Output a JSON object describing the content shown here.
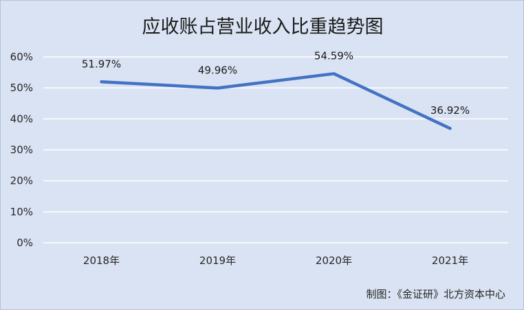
{
  "chart_data": {
    "type": "line",
    "title": "应收账占营业收入比重趋势图",
    "categories": [
      "2018年",
      "2019年",
      "2020年",
      "2021年"
    ],
    "series": [
      {
        "values": [
          51.97,
          49.96,
          54.59,
          36.92
        ]
      }
    ],
    "data_labels": [
      "51.97%",
      "49.96%",
      "54.59%",
      "36.92%"
    ],
    "y_ticks": [
      "0%",
      "10%",
      "20%",
      "30%",
      "40%",
      "50%",
      "60%"
    ],
    "y_tick_values": [
      0,
      10,
      20,
      30,
      40,
      50,
      60
    ],
    "ylim": [
      0,
      60
    ],
    "grid": true,
    "legend": "none",
    "colors": {
      "line": "#4472c4",
      "grid": "#ffffff",
      "background": "#dae3f3"
    }
  },
  "source_note": "制图：《金证研》北方资本中心"
}
